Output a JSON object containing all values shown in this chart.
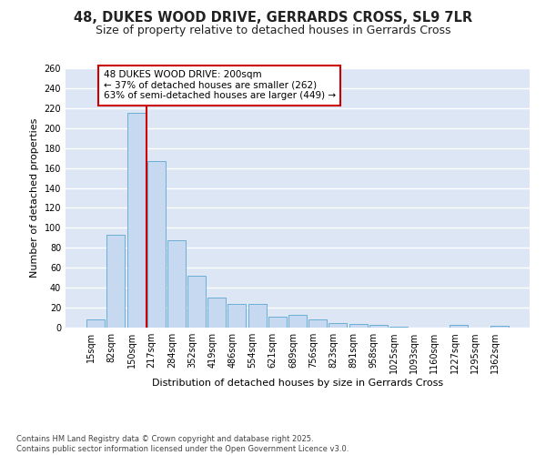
{
  "title_line1": "48, DUKES WOOD DRIVE, GERRARDS CROSS, SL9 7LR",
  "title_line2": "Size of property relative to detached houses in Gerrards Cross",
  "xlabel": "Distribution of detached houses by size in Gerrards Cross",
  "ylabel": "Number of detached properties",
  "categories": [
    "15sqm",
    "82sqm",
    "150sqm",
    "217sqm",
    "284sqm",
    "352sqm",
    "419sqm",
    "486sqm",
    "554sqm",
    "621sqm",
    "689sqm",
    "756sqm",
    "823sqm",
    "891sqm",
    "958sqm",
    "1025sqm",
    "1093sqm",
    "1160sqm",
    "1227sqm",
    "1295sqm",
    "1362sqm"
  ],
  "values": [
    8,
    93,
    215,
    167,
    88,
    52,
    30,
    24,
    24,
    11,
    13,
    8,
    5,
    4,
    3,
    1,
    0,
    0,
    3,
    0,
    2
  ],
  "bar_color": "#c6d9f0",
  "bar_edge_color": "#6baed6",
  "vline_color": "#cc0000",
  "annotation_text": "48 DUKES WOOD DRIVE: 200sqm\n← 37% of detached houses are smaller (262)\n63% of semi-detached houses are larger (449) →",
  "box_color": "#cc0000",
  "ylim": [
    0,
    260
  ],
  "yticks": [
    0,
    20,
    40,
    60,
    80,
    100,
    120,
    140,
    160,
    180,
    200,
    220,
    240,
    260
  ],
  "background_color": "#dce6f5",
  "grid_color": "#ffffff",
  "footnote": "Contains HM Land Registry data © Crown copyright and database right 2025.\nContains public sector information licensed under the Open Government Licence v3.0.",
  "title_fontsize": 10.5,
  "subtitle_fontsize": 9,
  "label_fontsize": 8,
  "tick_fontsize": 7,
  "annot_fontsize": 7.5
}
